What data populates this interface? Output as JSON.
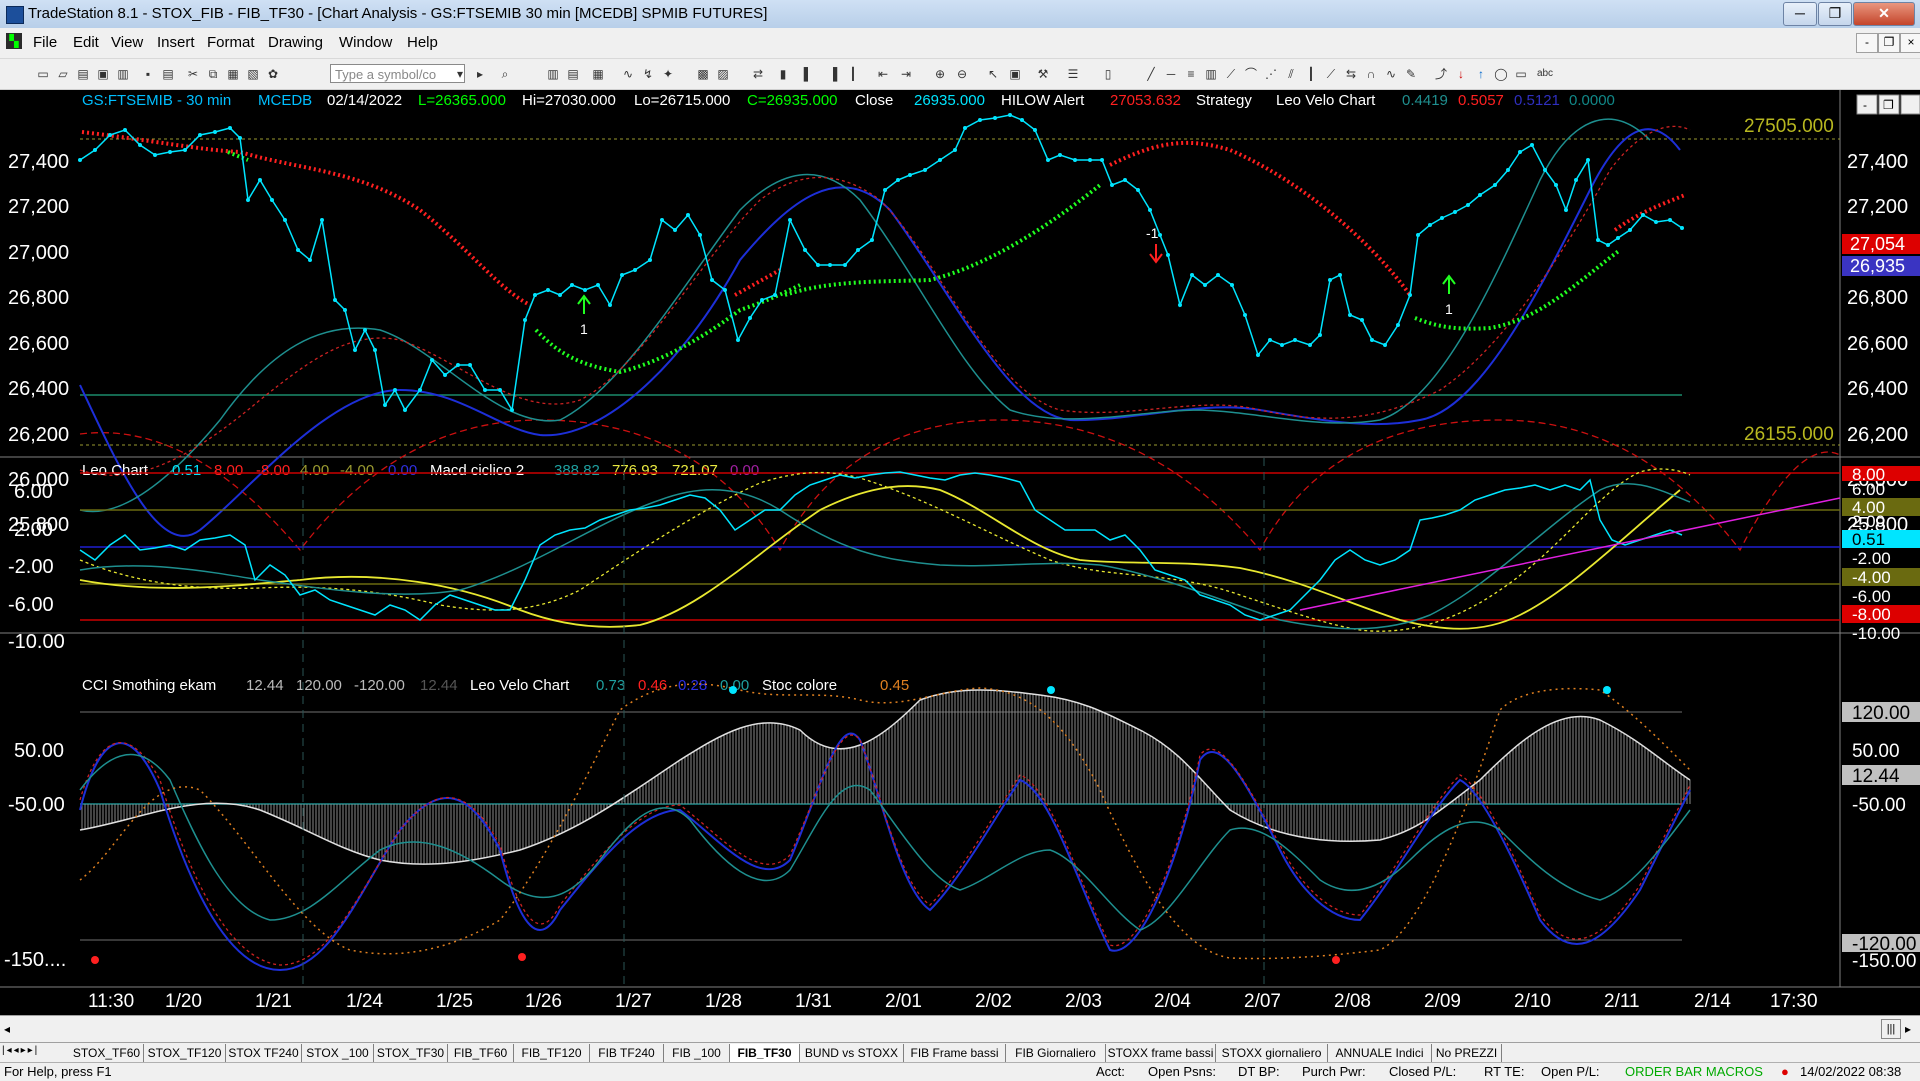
{
  "window": {
    "title": "TradeStation 8.1 - STOX_FIB - FIB_TF30 - [Chart Analysis - GS:FTSEMIB 30 min  [MCEDB] SPMIB FUTURES]",
    "buttons": {
      "minimize": "─",
      "restore": "❐",
      "close": "✕"
    }
  },
  "menu": {
    "items": [
      "File",
      "Edit",
      "View",
      "Insert",
      "Format",
      "Drawing",
      "Window",
      "Help"
    ],
    "mdi": {
      "minimize": "-",
      "restore": "❐",
      "close": "×"
    }
  },
  "toolbar": {
    "symbol_placeholder": "Type a symbol/co"
  },
  "chart": {
    "price_header": {
      "symbol": "GS:FTSEMIB - 30 min",
      "feed": "MCEDB",
      "date": "02/14/2022",
      "low_open": "L=26365.000",
      "hi": "Hi=27030.000",
      "lo": "Lo=26715.000",
      "close_val": "C=26935.000",
      "close_label": "Close",
      "close_num": "26935.000",
      "hilow_label": "HILOW Alert",
      "hilow_val": "27053.632",
      "strategy_label": "Strategy",
      "velo_label": "Leo Velo Chart",
      "velo_vals": [
        "0.4419",
        "0.5057",
        "0.5121",
        "0.0000"
      ]
    },
    "price_axis": [
      "27,400",
      "27,200",
      "27,000",
      "26,800",
      "26,600",
      "26,400",
      "26,200",
      "26,000",
      "25,800"
    ],
    "price_levels": {
      "upper": "27505.000",
      "lower": "26155.000"
    },
    "price_badges": {
      "hilow": "27,054",
      "close": "26,935"
    },
    "signals": {
      "buy1": "1",
      "buy2": "1",
      "sell": "-1"
    },
    "leo_header": {
      "name": "Leo Chart",
      "vals": [
        "0.51",
        "8.00",
        "-8.00",
        "4.00",
        "-4.00",
        "0.00"
      ],
      "macd_label": "Macd ciclico 2",
      "macd_vals": [
        "388.82",
        "776.93",
        "721.07",
        "0.00"
      ]
    },
    "leo_axis": [
      "6.00",
      "2.00",
      "-2.00",
      "-6.00",
      "-10.00"
    ],
    "leo_badges": [
      "8.00",
      "6.00",
      "4.00",
      "2.00",
      "0.51",
      "-2.00",
      "-4.00",
      "-6.00",
      "-8.00",
      "-10.00"
    ],
    "cci_header": {
      "name": "CCI Smothing ekam",
      "vals": [
        "12.44",
        "120.00",
        "-120.00",
        "12.44"
      ],
      "velo_label": "Leo Velo Chart",
      "velo_vals": [
        "0.73",
        "0.46",
        "0.28",
        "0.00"
      ],
      "stoc_label": "Stoc colore",
      "stoc_val": "0.45"
    },
    "cci_axis": [
      "50.00",
      "-50.00",
      "-150...."
    ],
    "cci_badges": [
      "120.00",
      "50.00",
      "12.44",
      "-50.00",
      "-120.00",
      "-150.00"
    ],
    "time_axis": [
      "11:30",
      "1/20",
      "1/21",
      "1/24",
      "1/25",
      "1/26",
      "1/27",
      "1/28",
      "1/31",
      "2/01",
      "2/02",
      "2/03",
      "2/04",
      "2/07",
      "2/08",
      "2/09",
      "2/10",
      "2/11",
      "2/14",
      "17:30"
    ],
    "colors": {
      "up": "#00ff00",
      "down": "#ff0000",
      "price": "#00e5ff",
      "grid": "#3a3a3a"
    }
  },
  "tabs": [
    "STOX_TF60",
    "STOX_TF120",
    "STOX TF240",
    "STOX _100",
    "STOX_TF30",
    "FIB_TF60",
    "FIB_TF120",
    "FIB TF240",
    "FIB _100",
    "FIB_TF30",
    "BUND vs STOXX",
    "FIB Frame bassi",
    "FIB Giornaliero",
    "STOXX frame bassi",
    "STOXX giornaliero",
    "ANNUALE Indici",
    "No PREZZI"
  ],
  "active_tab": "FIB_TF30",
  "status": {
    "help": "For Help, press F1",
    "acct": "Acct:",
    "open_psns": "Open Psns:",
    "dt_bp": "DT BP:",
    "purch": "Purch Pwr:",
    "closed": "Closed P/L:",
    "rt": "RT TE:",
    "open_pl": "Open P/L:",
    "macros": "ORDER BAR  MACROS",
    "datetime": "14/02/2022 08:38"
  }
}
